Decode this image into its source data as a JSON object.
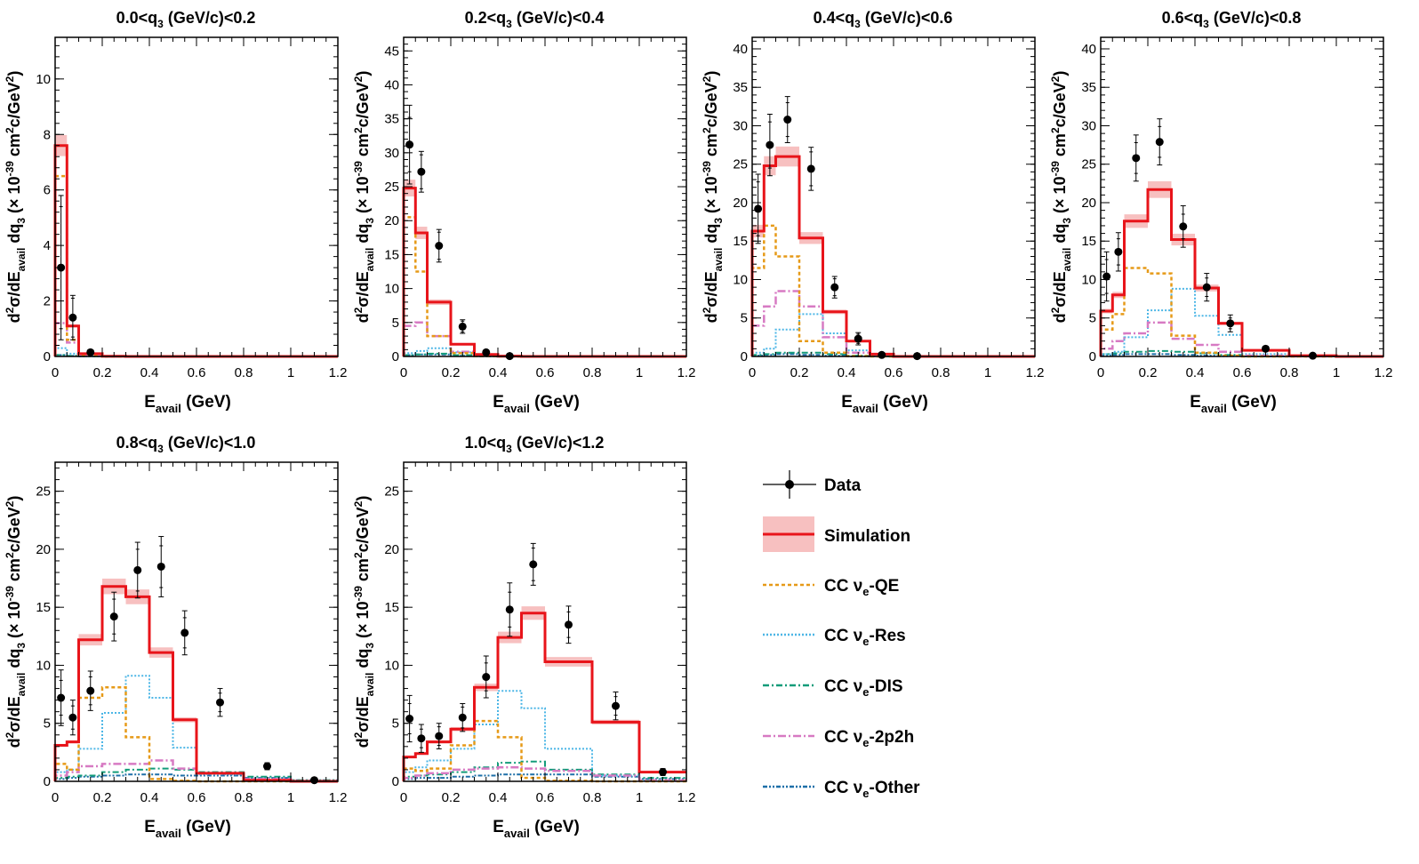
{
  "figure": {
    "x_axis_label": {
      "main": "E",
      "sub": "avail",
      "unit": " (GeV)"
    },
    "y_axis_label": {
      "d": "d",
      "sup2": "2",
      "sigma": "σ/dE",
      "avail": "avail",
      "dq": " dq",
      "three": "3",
      "times": " (× 10",
      "exp": "-39",
      "cm": " cm",
      "two": "2",
      "cgev": "c/GeV",
      "two_b": "2",
      "close": ")"
    }
  },
  "legend": {
    "items": [
      {
        "key": "data",
        "label": "Data"
      },
      {
        "key": "sim",
        "label": "Simulation"
      },
      {
        "key": "qe",
        "label_pre": "CC ν",
        "label_sub": "e",
        "label_post": "-QE"
      },
      {
        "key": "res",
        "label_pre": "CC ν",
        "label_sub": "e",
        "label_post": "-Res"
      },
      {
        "key": "dis",
        "label_pre": "CC ν",
        "label_sub": "e",
        "label_post": "-DIS"
      },
      {
        "key": "2p2h",
        "label_pre": "CC ν",
        "label_sub": "e",
        "label_post": "-2p2h"
      },
      {
        "key": "other",
        "label_pre": "CC ν",
        "label_sub": "e",
        "label_post": "-Other"
      }
    ]
  },
  "colors": {
    "sim": "#e8141a",
    "band": "#f7c0c0",
    "qe": "#e69a18",
    "res": "#4cb6e6",
    "dis": "#149c7a",
    "2p2h": "#d77ac3",
    "other": "#1d6fa8",
    "data": "#000000"
  },
  "chart_data": [
    {
      "type": "histogram",
      "title": {
        "pre": "0.0<q",
        "sub": "3",
        "post": " (GeV/c)<0.2"
      },
      "xlim": [
        0,
        1.2
      ],
      "ylim": [
        0,
        11.5
      ],
      "xticks": [
        0,
        0.2,
        0.4,
        0.6,
        0.8,
        1,
        1.2
      ],
      "xtick_labels": [
        "0",
        "0.2",
        "0.4",
        "0.6",
        "0.8",
        "1",
        "1.2"
      ],
      "yticks": [
        0,
        2,
        4,
        6,
        8,
        10
      ],
      "bin_edges": [
        0,
        0.05,
        0.1,
        0.2,
        0.3,
        0.4,
        0.5,
        0.6,
        0.8,
        1.0,
        1.2
      ],
      "series": [
        {
          "key": "other",
          "values": [
            0.05,
            0.02,
            0,
            0,
            0,
            0,
            0,
            0,
            0,
            0
          ]
        },
        {
          "key": "dis",
          "values": [
            0.05,
            0.02,
            0,
            0,
            0,
            0,
            0,
            0,
            0,
            0
          ]
        },
        {
          "key": "res",
          "values": [
            0.3,
            0.1,
            0,
            0,
            0,
            0,
            0,
            0,
            0,
            0
          ]
        },
        {
          "key": "2p2h",
          "values": [
            1.2,
            0.5,
            0.02,
            0,
            0,
            0,
            0,
            0,
            0,
            0
          ]
        },
        {
          "key": "qe",
          "values": [
            6.5,
            0.6,
            0.05,
            0,
            0,
            0,
            0,
            0,
            0,
            0
          ]
        },
        {
          "key": "sim",
          "values": [
            7.6,
            1.1,
            0.1,
            0.01,
            0,
            0,
            0,
            0,
            0,
            0
          ]
        }
      ],
      "band_rel": 0.05,
      "data_points": {
        "x": [
          0.025,
          0.075,
          0.15
        ],
        "y": [
          3.2,
          1.4,
          0.15
        ],
        "err_stat": [
          2.2,
          0.7,
          0.05
        ],
        "err_tot": [
          2.6,
          0.8,
          0.06
        ]
      }
    },
    {
      "type": "histogram",
      "title": {
        "pre": "0.2<q",
        "sub": "3",
        "post": " (GeV/c)<0.4"
      },
      "xlim": [
        0,
        1.2
      ],
      "ylim": [
        0,
        47
      ],
      "xticks": [
        0,
        0.2,
        0.4,
        0.6,
        0.8,
        1,
        1.2
      ],
      "xtick_labels": [
        "0",
        "0.2",
        "0.4",
        "0.6",
        "0.8",
        "1",
        "1.2"
      ],
      "yticks": [
        0,
        5,
        10,
        15,
        20,
        25,
        30,
        35,
        40,
        45
      ],
      "bin_edges": [
        0,
        0.05,
        0.1,
        0.2,
        0.3,
        0.4,
        0.5,
        0.6,
        0.8,
        1.0,
        1.2
      ],
      "series": [
        {
          "key": "other",
          "values": [
            0.2,
            0.3,
            0.3,
            0.1,
            0,
            0,
            0,
            0,
            0,
            0
          ]
        },
        {
          "key": "dis",
          "values": [
            0.2,
            0.3,
            0.4,
            0.2,
            0.05,
            0,
            0,
            0,
            0,
            0
          ]
        },
        {
          "key": "res",
          "values": [
            0.5,
            0.8,
            1.2,
            0.6,
            0.1,
            0,
            0,
            0,
            0,
            0
          ]
        },
        {
          "key": "2p2h",
          "values": [
            4.5,
            5.0,
            3.0,
            0.7,
            0.1,
            0,
            0,
            0,
            0,
            0
          ]
        },
        {
          "key": "qe",
          "values": [
            20.5,
            12.5,
            3.0,
            0.5,
            0.05,
            0,
            0,
            0,
            0,
            0
          ]
        },
        {
          "key": "sim",
          "values": [
            24.8,
            18.2,
            8.0,
            1.8,
            0.3,
            0.05,
            0,
            0,
            0,
            0
          ]
        }
      ],
      "band_rel": 0.05,
      "data_points": {
        "x": [
          0.025,
          0.075,
          0.15,
          0.25,
          0.35,
          0.45
        ],
        "y": [
          31.2,
          27.2,
          16.3,
          4.4,
          0.6,
          0.05
        ],
        "err_stat": [
          4.0,
          2.5,
          2.0,
          0.8,
          0.3,
          0.1
        ],
        "err_tot": [
          5.8,
          3.0,
          2.4,
          1.0,
          0.35,
          0.1
        ]
      }
    },
    {
      "type": "histogram",
      "title": {
        "pre": "0.4<q",
        "sub": "3",
        "post": " (GeV/c)<0.6"
      },
      "xlim": [
        0,
        1.2
      ],
      "ylim": [
        0,
        41.5
      ],
      "xticks": [
        0,
        0.2,
        0.4,
        0.6,
        0.8,
        1,
        1.2
      ],
      "xtick_labels": [
        "0",
        "0.2",
        "0.4",
        "0.6",
        "0.8",
        "1",
        "1.2"
      ],
      "yticks": [
        0,
        5,
        10,
        15,
        20,
        25,
        30,
        35,
        40
      ],
      "bin_edges": [
        0,
        0.05,
        0.1,
        0.2,
        0.3,
        0.4,
        0.5,
        0.6,
        0.8,
        1.0,
        1.2
      ],
      "series": [
        {
          "key": "other",
          "values": [
            0.1,
            0.2,
            0.3,
            0.2,
            0.1,
            0,
            0,
            0,
            0,
            0
          ]
        },
        {
          "key": "dis",
          "values": [
            0.2,
            0.3,
            0.5,
            0.5,
            0.3,
            0.1,
            0,
            0,
            0,
            0
          ]
        },
        {
          "key": "res",
          "values": [
            0.5,
            1.0,
            3.5,
            5.5,
            3.0,
            0.8,
            0.1,
            0,
            0,
            0
          ]
        },
        {
          "key": "2p2h",
          "values": [
            4.0,
            6.5,
            8.5,
            6.5,
            2.5,
            0.5,
            0.05,
            0,
            0,
            0
          ]
        },
        {
          "key": "qe",
          "values": [
            11.5,
            17.0,
            13.0,
            2.0,
            0.5,
            0.05,
            0,
            0,
            0,
            0
          ]
        },
        {
          "key": "sim",
          "values": [
            16.3,
            24.8,
            26.0,
            15.4,
            5.8,
            2.0,
            0.3,
            0,
            0,
            0
          ]
        }
      ],
      "band_rel": 0.05,
      "data_points": {
        "x": [
          0.025,
          0.075,
          0.15,
          0.25,
          0.35,
          0.45,
          0.55,
          0.7
        ],
        "y": [
          19.2,
          27.5,
          30.8,
          24.4,
          9.0,
          2.3,
          0.2,
          0.05
        ],
        "err_stat": [
          3.5,
          3.0,
          2.2,
          2.2,
          1.1,
          0.6,
          0.2,
          0.1
        ],
        "err_tot": [
          4.5,
          4.0,
          3.0,
          2.8,
          1.4,
          0.8,
          0.3,
          0.15
        ]
      }
    },
    {
      "type": "histogram",
      "title": {
        "pre": "0.6<q",
        "sub": "3",
        "post": " (GeV/c)<0.8"
      },
      "xlim": [
        0,
        1.2
      ],
      "ylim": [
        0,
        41.5
      ],
      "xticks": [
        0,
        0.2,
        0.4,
        0.6,
        0.8,
        1,
        1.2
      ],
      "xtick_labels": [
        "0",
        "0.2",
        "0.4",
        "0.6",
        "0.8",
        "1",
        "1.2"
      ],
      "yticks": [
        0,
        5,
        10,
        15,
        20,
        25,
        30,
        35,
        40
      ],
      "bin_edges": [
        0,
        0.05,
        0.1,
        0.2,
        0.3,
        0.4,
        0.5,
        0.6,
        0.8,
        1.0,
        1.2
      ],
      "series": [
        {
          "key": "other",
          "values": [
            0.1,
            0.2,
            0.3,
            0.3,
            0.2,
            0.1,
            0.05,
            0,
            0,
            0
          ]
        },
        {
          "key": "dis",
          "values": [
            0.3,
            0.4,
            0.6,
            0.7,
            0.6,
            0.4,
            0.2,
            0,
            0,
            0
          ]
        },
        {
          "key": "res",
          "values": [
            0.3,
            0.6,
            2.5,
            6.0,
            8.8,
            5.3,
            2.8,
            0.3,
            0,
            0
          ]
        },
        {
          "key": "2p2h",
          "values": [
            1.0,
            2.0,
            3.0,
            4.4,
            2.3,
            1.5,
            0.6,
            0.1,
            0,
            0
          ]
        },
        {
          "key": "qe",
          "values": [
            3.5,
            5.5,
            11.5,
            10.8,
            2.7,
            0.5,
            0.1,
            0,
            0,
            0
          ]
        },
        {
          "key": "sim",
          "values": [
            5.9,
            8.0,
            17.6,
            21.7,
            15.2,
            8.9,
            4.3,
            0.8,
            0.1,
            0
          ]
        }
      ],
      "band_rel": 0.05,
      "data_points": {
        "x": [
          0.025,
          0.075,
          0.15,
          0.25,
          0.35,
          0.45,
          0.55,
          0.7,
          0.9
        ],
        "y": [
          10.4,
          13.6,
          25.8,
          27.9,
          16.9,
          9.0,
          4.3,
          1.0,
          0.1
        ],
        "err_stat": [
          2.2,
          1.7,
          2.0,
          2.0,
          1.6,
          1.2,
          0.7,
          0.2,
          0.1
        ],
        "err_tot": [
          3.2,
          2.5,
          3.0,
          3.0,
          2.7,
          1.8,
          1.1,
          0.3,
          0.15
        ]
      }
    },
    {
      "type": "histogram",
      "title": {
        "pre": "0.8<q",
        "sub": "3",
        "post": " (GeV/c)<1.0"
      },
      "xlim": [
        0,
        1.2
      ],
      "ylim": [
        0,
        27.5
      ],
      "xticks": [
        0,
        0.2,
        0.4,
        0.6,
        0.8,
        1,
        1.2
      ],
      "xtick_labels": [
        "0",
        "0.2",
        "0.4",
        "0.6",
        "0.8",
        "1",
        "1.2"
      ],
      "yticks": [
        0,
        5,
        10,
        15,
        20,
        25
      ],
      "bin_edges": [
        0,
        0.05,
        0.1,
        0.2,
        0.3,
        0.4,
        0.5,
        0.6,
        0.8,
        1.0,
        1.2
      ],
      "series": [
        {
          "key": "other",
          "values": [
            0.2,
            0.3,
            0.4,
            0.5,
            0.6,
            0.6,
            0.5,
            0.5,
            0.3,
            0.1
          ]
        },
        {
          "key": "dis",
          "values": [
            0.3,
            0.4,
            0.5,
            0.8,
            1.0,
            1.1,
            1.0,
            0.8,
            0.4,
            0.1
          ]
        },
        {
          "key": "res",
          "values": [
            0.8,
            1.0,
            2.8,
            5.9,
            9.1,
            7.2,
            2.9,
            0.6,
            0.1,
            0
          ]
        },
        {
          "key": "2p2h",
          "values": [
            0.5,
            0.8,
            1.3,
            1.5,
            1.5,
            1.8,
            1.1,
            0.7,
            0.2,
            0
          ]
        },
        {
          "key": "qe",
          "values": [
            1.5,
            1.0,
            7.2,
            8.1,
            3.8,
            0.2,
            0.05,
            0,
            0,
            0
          ]
        },
        {
          "key": "sim",
          "values": [
            3.1,
            3.4,
            12.2,
            16.8,
            15.9,
            11.1,
            5.3,
            0.7,
            0.1,
            0
          ]
        }
      ],
      "band_rel": 0.04,
      "data_points": {
        "x": [
          0.025,
          0.075,
          0.15,
          0.25,
          0.35,
          0.45,
          0.55,
          0.7,
          0.9,
          1.1
        ],
        "y": [
          7.2,
          5.5,
          7.8,
          14.2,
          18.2,
          18.5,
          12.8,
          6.8,
          1.3,
          0.1
        ],
        "err_stat": [
          1.5,
          1.0,
          1.2,
          1.5,
          1.8,
          1.8,
          1.3,
          0.8,
          0.2,
          0.1
        ],
        "err_tot": [
          2.4,
          1.5,
          1.7,
          2.1,
          2.4,
          2.6,
          1.9,
          1.2,
          0.3,
          0.15
        ]
      }
    },
    {
      "type": "histogram",
      "title": {
        "pre": "1.0<q",
        "sub": "3",
        "post": " (GeV/c)<1.2"
      },
      "xlim": [
        0,
        1.2
      ],
      "ylim": [
        0,
        27.5
      ],
      "xticks": [
        0,
        0.2,
        0.4,
        0.6,
        0.8,
        1,
        1.2
      ],
      "xtick_labels": [
        "0",
        "0.2",
        "0.4",
        "0.6",
        "0.8",
        "1",
        "1.2"
      ],
      "yticks": [
        0,
        5,
        10,
        15,
        20,
        25
      ],
      "bin_edges": [
        0,
        0.05,
        0.1,
        0.2,
        0.3,
        0.4,
        0.5,
        0.6,
        0.8,
        1.0,
        1.2
      ],
      "series": [
        {
          "key": "other",
          "values": [
            0.2,
            0.3,
            0.3,
            0.4,
            0.5,
            0.6,
            0.6,
            0.6,
            0.4,
            0.2
          ]
        },
        {
          "key": "dis",
          "values": [
            0.4,
            0.5,
            0.6,
            0.8,
            1.2,
            1.6,
            1.7,
            1.0,
            0.6,
            0.3
          ]
        },
        {
          "key": "res",
          "values": [
            0.8,
            1.2,
            1.8,
            2.8,
            4.9,
            7.8,
            6.3,
            2.8,
            0.5,
            0.1
          ]
        },
        {
          "key": "2p2h",
          "values": [
            0.3,
            0.5,
            0.7,
            1.0,
            1.1,
            1.2,
            1.1,
            0.9,
            0.5,
            0.1
          ]
        },
        {
          "key": "qe",
          "values": [
            1.1,
            0.9,
            1.1,
            3.1,
            5.2,
            3.8,
            0.3,
            0.05,
            0,
            0
          ]
        },
        {
          "key": "sim",
          "values": [
            2.1,
            2.4,
            3.4,
            4.5,
            8.1,
            12.4,
            14.5,
            10.3,
            5.1,
            0.8
          ]
        }
      ],
      "band_rel": 0.04,
      "data_points": {
        "x": [
          0.025,
          0.075,
          0.15,
          0.25,
          0.35,
          0.45,
          0.55,
          0.7,
          0.9,
          1.1
        ],
        "y": [
          5.4,
          3.7,
          3.9,
          5.5,
          9.0,
          14.8,
          18.7,
          13.5,
          6.5,
          0.8
        ],
        "err_stat": [
          1.3,
          0.8,
          0.8,
          0.9,
          1.2,
          1.5,
          1.4,
          1.1,
          0.8,
          0.2
        ],
        "err_tot": [
          2.0,
          1.2,
          1.1,
          1.2,
          1.8,
          2.3,
          1.8,
          1.6,
          1.2,
          0.3
        ]
      }
    }
  ]
}
